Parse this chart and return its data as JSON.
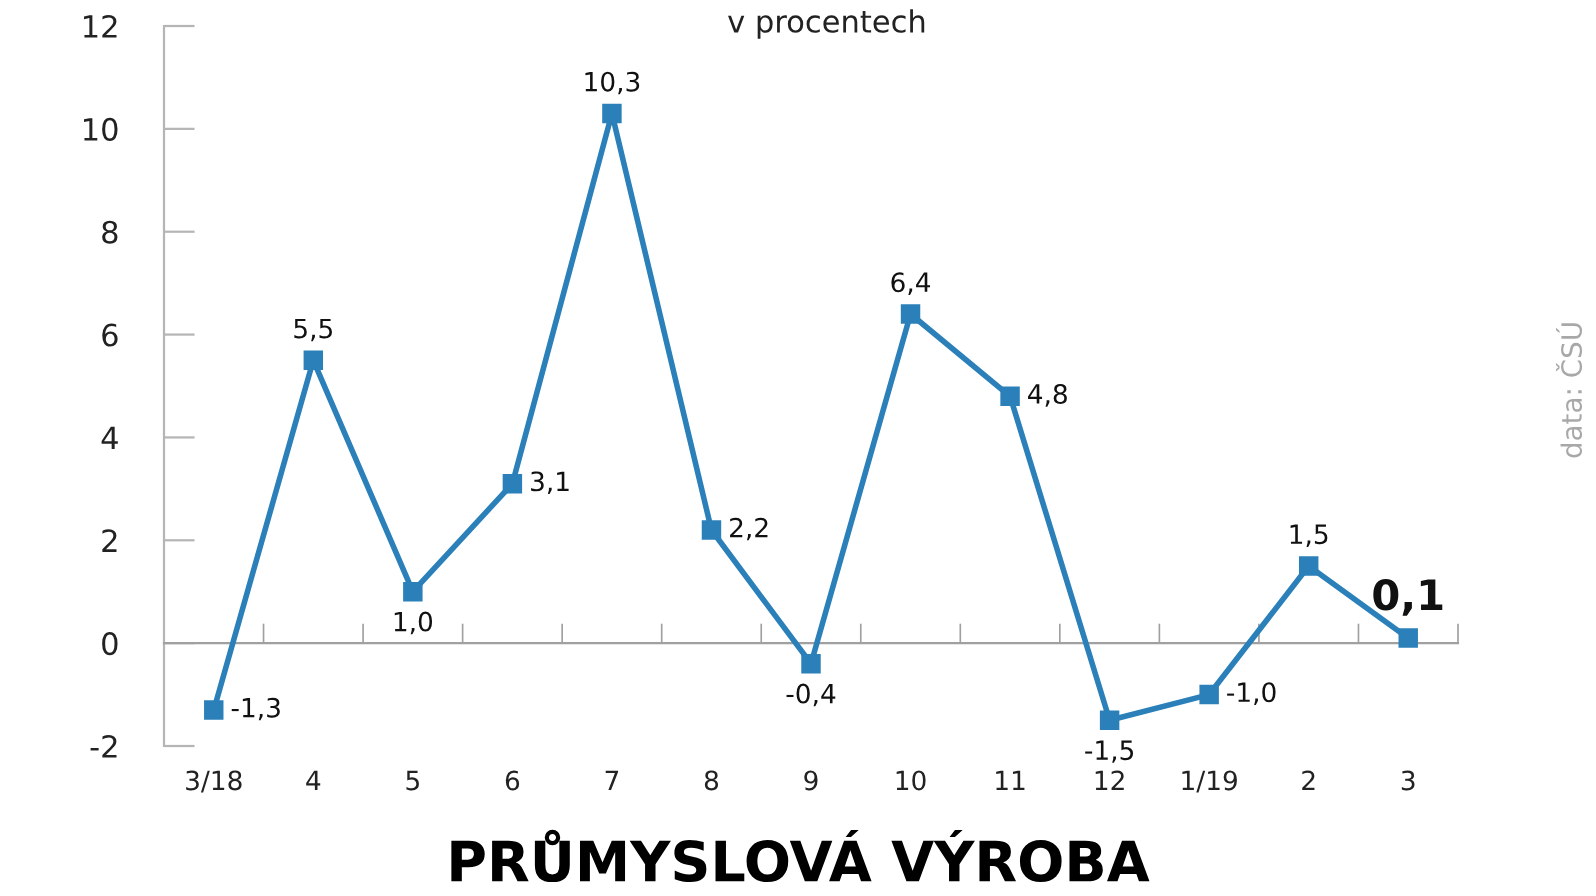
{
  "chart_data": {
    "type": "line",
    "title": "PRŮMYSLOVÁ VÝROBA",
    "subtitle": "v procentech",
    "annotations": [
      "data: ČSÚ"
    ],
    "categories": [
      "3/18",
      "4",
      "5",
      "6",
      "7",
      "8",
      "9",
      "10",
      "11",
      "12",
      "1/19",
      "2",
      "3"
    ],
    "series": [
      {
        "color": "#2b80b9",
        "values": [
          -1.3,
          5.5,
          1.0,
          3.1,
          10.3,
          2.2,
          -0.4,
          6.4,
          4.8,
          -1.5,
          -1.0,
          1.5,
          0.1
        ],
        "value_labels": [
          "-1,3",
          "5,5",
          "1,0",
          "3,1",
          "10,3",
          "2,2",
          "-0,4",
          "6,4",
          "4,8",
          "-1,5",
          "-1,0",
          "1,5",
          "0,1"
        ]
      }
    ],
    "ylim": [
      -2,
      12
    ],
    "yticks": [
      -2,
      0,
      2,
      4,
      6,
      8,
      10,
      12
    ],
    "marker": "square",
    "line_style": "solid"
  }
}
